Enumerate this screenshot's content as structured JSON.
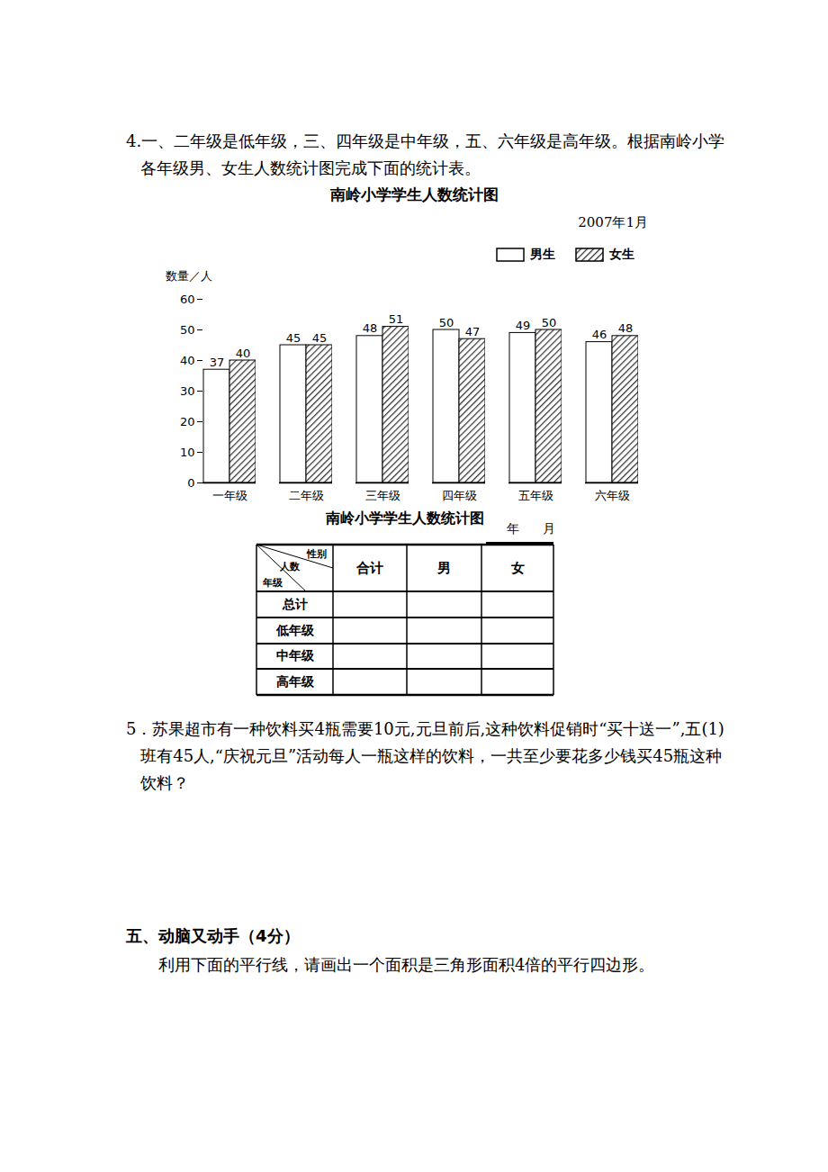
{
  "problem4": {
    "text": "4.一、二年级是低年级，三、四年级是中年级，五、六年级是高年级。根据南岭小学各年级男、女生人数统计图完成下面的统计表。"
  },
  "chart_data": {
    "type": "bar",
    "title": "南岭小学学生人数统计图",
    "subtitle": "2007年1月",
    "y_label": "数量／人",
    "categories": [
      "一年级",
      "二年级",
      "三年级",
      "四年级",
      "五年级",
      "六年级"
    ],
    "series": [
      {
        "name": "男生",
        "color": "#ffffff",
        "values": [
          37,
          45,
          48,
          50,
          49,
          46
        ]
      },
      {
        "name": "女生",
        "color": "#333333",
        "values": [
          40,
          45,
          51,
          47,
          50,
          48
        ]
      }
    ],
    "ylim": [
      0,
      60
    ],
    "yticks": [
      0,
      10,
      20,
      30,
      40,
      50,
      60
    ],
    "data_labels": true,
    "legend": "top-right"
  },
  "table": {
    "title": "南岭小学学生人数统计图",
    "date_labels": [
      "年",
      "月"
    ],
    "corner": {
      "top_right": "性别",
      "middle": "人数",
      "bottom_left": "年级"
    },
    "columns": [
      "合计",
      "男",
      "女"
    ],
    "rows": [
      "总计",
      "低年级",
      "中年级",
      "高年级"
    ]
  },
  "problem5": {
    "text": "5．苏果超市有一种饮料买4瓶需要10元,元旦前后,这种饮料促销时“买十送一”,五(1)班有45人,“庆祝元旦”活动每人一瓶这样的饮料，一共至少要花多少钱买45瓶这种饮料？"
  },
  "section5": {
    "heading": "五、动脑又动手（4分）",
    "text": "利用下面的平行线，请画出一个面积是三角形面积4倍的平行四边形。"
  }
}
